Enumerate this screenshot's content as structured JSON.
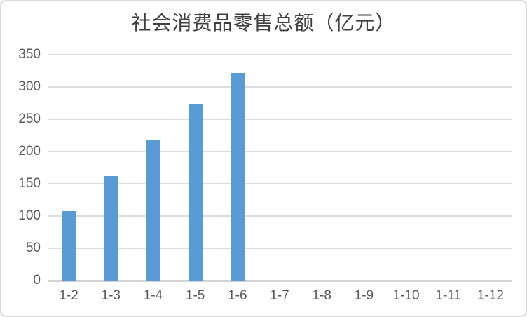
{
  "chart_data": {
    "type": "bar",
    "title": "社会消费品零售总额（亿元）",
    "categories": [
      "1-2",
      "1-3",
      "1-4",
      "1-5",
      "1-6",
      "1-7",
      "1-8",
      "1-9",
      "1-10",
      "1-11",
      "1-12"
    ],
    "values": [
      108,
      162,
      217,
      273,
      322,
      null,
      null,
      null,
      null,
      null,
      null
    ],
    "series_name": "社会消费品零售总额",
    "xlabel": "",
    "ylabel": "",
    "ylim": [
      0,
      350
    ],
    "ytick_step": 50,
    "yticks": [
      0,
      50,
      100,
      150,
      200,
      250,
      300,
      350
    ],
    "grid": true,
    "legend": false,
    "colors": {
      "bar": "#5B9BD5",
      "gridline": "#DCDCDC",
      "axis_line": "#D2D2D2",
      "axis_text": "#595959",
      "title_text": "#3F3F3F",
      "frame_border": "#D9D9D9",
      "background": "#FFFFFF"
    }
  }
}
